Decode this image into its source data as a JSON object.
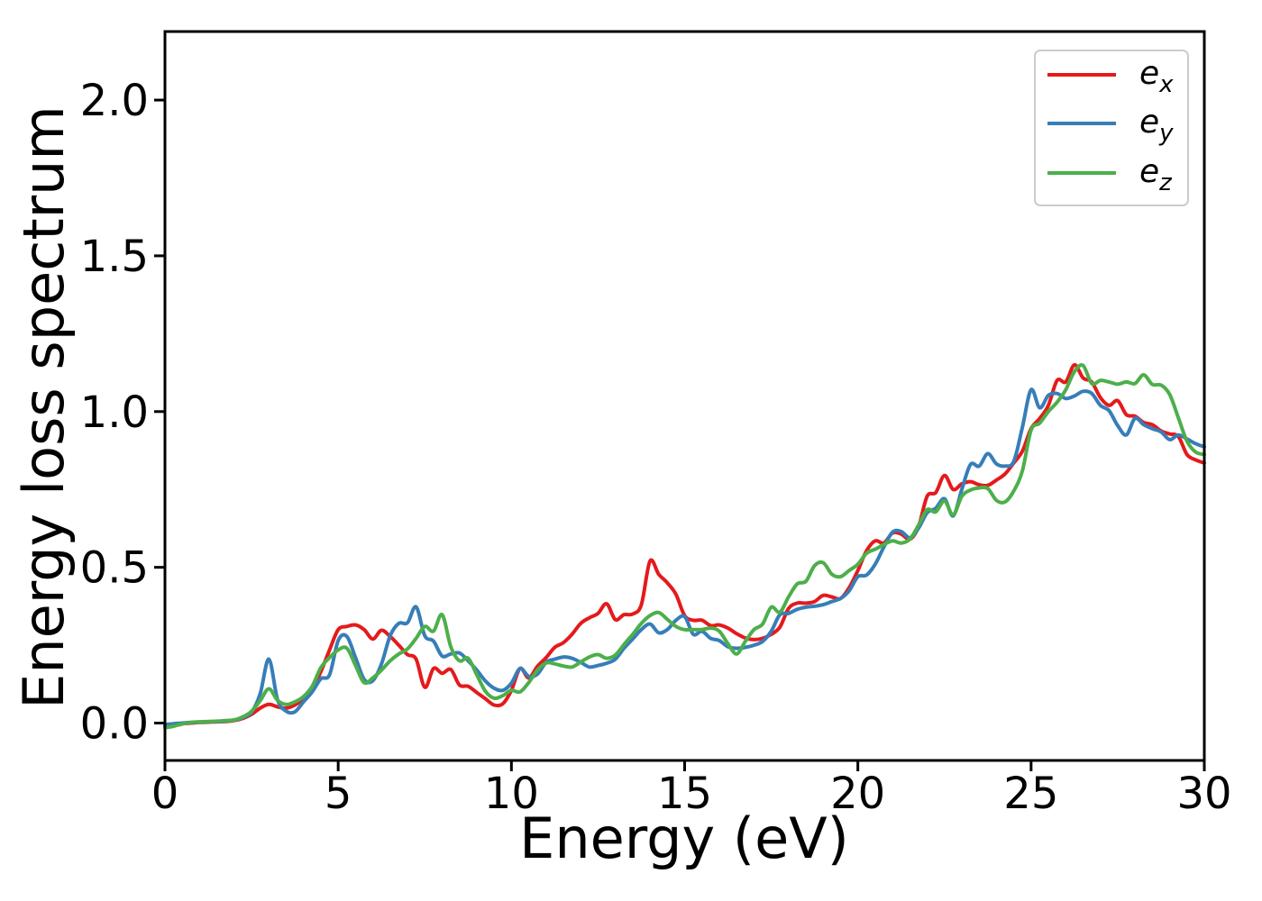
{
  "figure": {
    "title": ""
  },
  "legend": {
    "position": "upper right",
    "entries": [
      {
        "label_main": "e",
        "label_sub": "x",
        "color": "#e41a1c"
      },
      {
        "label_main": "e",
        "label_sub": "y",
        "color": "#377eb8"
      },
      {
        "label_main": "e",
        "label_sub": "z",
        "color": "#4daf4a"
      }
    ]
  },
  "chart_data": {
    "type": "line",
    "title": "",
    "xlabel": "Energy (eV)",
    "ylabel": "Energy loss spectrum",
    "xlim": [
      0,
      30
    ],
    "ylim": [
      -0.12,
      2.22
    ],
    "x_ticks": [
      0,
      5,
      10,
      15,
      20,
      25,
      30
    ],
    "x_tick_labels": [
      "0",
      "5",
      "10",
      "15",
      "20",
      "25",
      "30"
    ],
    "y_ticks": [
      0.0,
      0.5,
      1.0,
      1.5,
      2.0
    ],
    "y_tick_labels": [
      "0.0",
      "0.5",
      "1.0",
      "1.5",
      "2.0"
    ],
    "grid": false,
    "legend_position": "upper right",
    "x_start": 0,
    "x_step": 0.25,
    "series": [
      {
        "name": "e_x",
        "color": "#e41a1c",
        "values": [
          -0.008,
          -0.005,
          -0.002,
          0.0,
          0.002,
          0.003,
          0.004,
          0.005,
          0.008,
          0.015,
          0.028,
          0.048,
          0.06,
          0.052,
          0.048,
          0.058,
          0.078,
          0.105,
          0.165,
          0.235,
          0.3,
          0.31,
          0.315,
          0.3,
          0.27,
          0.298,
          0.278,
          0.25,
          0.22,
          0.205,
          0.115,
          0.175,
          0.16,
          0.172,
          0.122,
          0.118,
          0.098,
          0.078,
          0.058,
          0.062,
          0.105,
          0.175,
          0.145,
          0.182,
          0.21,
          0.243,
          0.258,
          0.285,
          0.32,
          0.338,
          0.352,
          0.383,
          0.332,
          0.348,
          0.35,
          0.38,
          0.52,
          0.478,
          0.45,
          0.413,
          0.345,
          0.33,
          0.33,
          0.313,
          0.315,
          0.305,
          0.287,
          0.273,
          0.268,
          0.272,
          0.285,
          0.308,
          0.368,
          0.385,
          0.385,
          0.39,
          0.41,
          0.405,
          0.4,
          0.435,
          0.49,
          0.553,
          0.585,
          0.578,
          0.61,
          0.607,
          0.59,
          0.63,
          0.728,
          0.74,
          0.795,
          0.75,
          0.768,
          0.775,
          0.765,
          0.763,
          0.78,
          0.8,
          0.835,
          0.873,
          0.945,
          0.978,
          1.02,
          1.1,
          1.095,
          1.15,
          1.108,
          1.095,
          1.045,
          1.02,
          1.035,
          0.99,
          0.985,
          0.965,
          0.958,
          0.938,
          0.928,
          0.92,
          0.862,
          0.845,
          0.835
        ]
      },
      {
        "name": "e_y",
        "color": "#377eb8",
        "values": [
          -0.005,
          -0.002,
          0.0,
          0.002,
          0.003,
          0.004,
          0.005,
          0.006,
          0.01,
          0.018,
          0.035,
          0.095,
          0.205,
          0.075,
          0.038,
          0.036,
          0.068,
          0.1,
          0.142,
          0.155,
          0.265,
          0.278,
          0.21,
          0.14,
          0.136,
          0.19,
          0.28,
          0.32,
          0.322,
          0.373,
          0.28,
          0.263,
          0.215,
          0.222,
          0.225,
          0.2,
          0.17,
          0.135,
          0.112,
          0.105,
          0.128,
          0.175,
          0.15,
          0.157,
          0.195,
          0.205,
          0.212,
          0.208,
          0.195,
          0.18,
          0.185,
          0.192,
          0.205,
          0.24,
          0.27,
          0.3,
          0.318,
          0.29,
          0.3,
          0.33,
          0.342,
          0.285,
          0.295,
          0.272,
          0.265,
          0.245,
          0.24,
          0.243,
          0.25,
          0.262,
          0.295,
          0.348,
          0.352,
          0.365,
          0.372,
          0.375,
          0.38,
          0.39,
          0.4,
          0.425,
          0.47,
          0.475,
          0.51,
          0.565,
          0.613,
          0.615,
          0.595,
          0.625,
          0.675,
          0.69,
          0.72,
          0.665,
          0.75,
          0.83,
          0.825,
          0.865,
          0.832,
          0.825,
          0.84,
          0.95,
          1.07,
          1.012,
          1.052,
          1.058,
          1.042,
          1.05,
          1.065,
          1.058,
          1.02,
          1.003,
          0.955,
          0.925,
          0.978,
          0.958,
          0.945,
          0.935,
          0.91,
          0.925,
          0.912,
          0.897,
          0.887
        ]
      },
      {
        "name": "e_z",
        "color": "#4daf4a",
        "values": [
          -0.015,
          -0.01,
          -0.003,
          0.002,
          0.004,
          0.005,
          0.006,
          0.008,
          0.01,
          0.02,
          0.038,
          0.072,
          0.11,
          0.073,
          0.06,
          0.068,
          0.085,
          0.118,
          0.178,
          0.21,
          0.235,
          0.24,
          0.185,
          0.13,
          0.145,
          0.17,
          0.2,
          0.222,
          0.238,
          0.272,
          0.31,
          0.295,
          0.348,
          0.245,
          0.2,
          0.208,
          0.155,
          0.102,
          0.08,
          0.088,
          0.105,
          0.1,
          0.13,
          0.17,
          0.193,
          0.19,
          0.183,
          0.18,
          0.196,
          0.212,
          0.22,
          0.208,
          0.218,
          0.252,
          0.285,
          0.32,
          0.345,
          0.355,
          0.333,
          0.31,
          0.3,
          0.3,
          0.3,
          0.305,
          0.295,
          0.255,
          0.222,
          0.262,
          0.3,
          0.318,
          0.372,
          0.356,
          0.405,
          0.447,
          0.455,
          0.505,
          0.515,
          0.478,
          0.47,
          0.49,
          0.51,
          0.545,
          0.558,
          0.573,
          0.585,
          0.578,
          0.59,
          0.635,
          0.685,
          0.678,
          0.713,
          0.668,
          0.728,
          0.748,
          0.755,
          0.753,
          0.715,
          0.71,
          0.745,
          0.81,
          0.94,
          0.963,
          1.0,
          1.03,
          1.07,
          1.128,
          1.148,
          1.09,
          1.1,
          1.095,
          1.088,
          1.095,
          1.09,
          1.118,
          1.087,
          1.085,
          1.055,
          0.98,
          0.905,
          0.87,
          0.862
        ]
      }
    ]
  }
}
